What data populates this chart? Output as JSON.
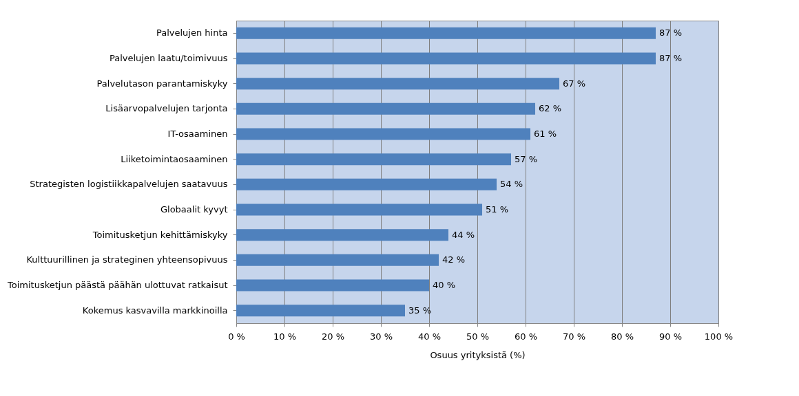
{
  "chart_data": {
    "type": "bar",
    "orientation": "horizontal",
    "xlabel": "Osuus yrityksistä (%)",
    "categories": [
      "Palvelujen hinta",
      "Palvelujen laatu/toimivuus",
      "Palvelutason parantamiskyky",
      "Lisäarvopalvelujen tarjonta",
      "IT-osaaminen",
      "Liiketoimintaosaaminen",
      "Strategisten logistiikkapalvelujen saatavuus",
      "Globaalit kyvyt",
      "Toimitusketjun kehittämiskyky",
      "Kulttuurillinen ja strateginen yhteensopivuus",
      "Toimitusketjun päästä päähän ulottuvat ratkaisut",
      "Kokemus kasvavilla markkinoilla"
    ],
    "values": [
      87,
      87,
      67,
      62,
      61,
      57,
      54,
      51,
      44,
      42,
      40,
      35
    ],
    "value_labels": [
      "87 %",
      "87 %",
      "67 %",
      "62 %",
      "61 %",
      "57 %",
      "54 %",
      "51 %",
      "44 %",
      "42 %",
      "40 %",
      "35 %"
    ],
    "color": "#4f81bd",
    "xlim": [
      0,
      100
    ],
    "xticks": [
      {
        "value": 0,
        "label": "0 %"
      },
      {
        "value": 10,
        "label": "10 %"
      },
      {
        "value": 20,
        "label": "20 %"
      },
      {
        "value": 30,
        "label": "30 %"
      },
      {
        "value": 40,
        "label": "40 %"
      },
      {
        "value": 50,
        "label": "50 %"
      },
      {
        "value": 60,
        "label": "60 %"
      },
      {
        "value": 70,
        "label": "70 %"
      },
      {
        "value": 80,
        "label": "80 %"
      },
      {
        "value": 90,
        "label": "90 %"
      },
      {
        "value": 100,
        "label": "100 %"
      }
    ],
    "grid": "x"
  }
}
